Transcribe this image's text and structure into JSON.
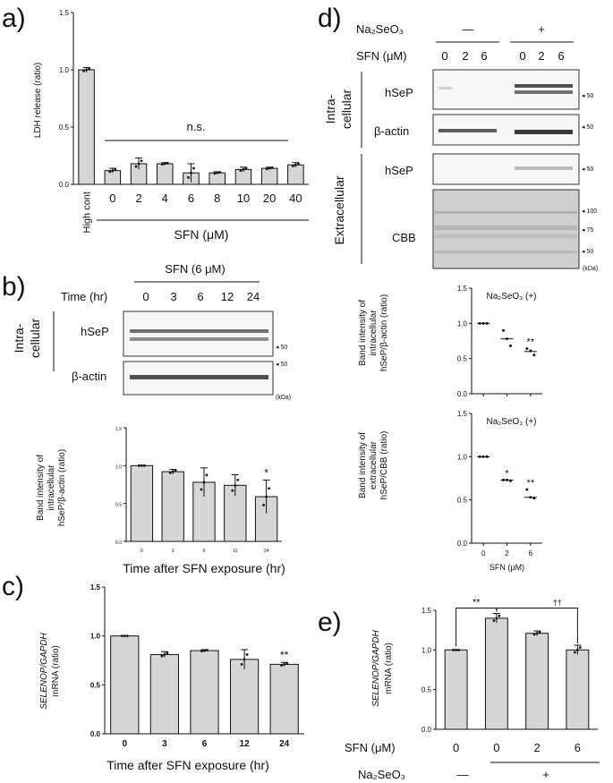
{
  "chart_data": [
    {
      "panel": "a)",
      "type": "bar",
      "ylabel": "LDH release (ratio)",
      "xlabel": "SFN (μM)",
      "categories": [
        "High cont",
        "0",
        "2",
        "4",
        "6",
        "8",
        "10",
        "20",
        "40"
      ],
      "values": [
        1.0,
        0.12,
        0.18,
        0.18,
        0.1,
        0.1,
        0.13,
        0.14,
        0.17
      ],
      "errors": [
        0.02,
        0.02,
        0.05,
        0.01,
        0.08,
        0.01,
        0.02,
        0.01,
        0.02
      ],
      "ylim": [
        0,
        1.5
      ],
      "yticks": [
        "0.0",
        "0.5",
        "1.0",
        "1.5"
      ],
      "annotation": "n.s."
    },
    {
      "panel": "b)",
      "type": "bar",
      "ylabel": "Band intensity of intracellular hSeP/β-actin (ratio)",
      "xlabel": "Time after SFN exposure (hr)",
      "categories": [
        "0",
        "3",
        "6",
        "12",
        "24"
      ],
      "values": [
        1.0,
        0.92,
        0.78,
        0.74,
        0.59
      ],
      "errors": [
        0.0,
        0.03,
        0.19,
        0.14,
        0.22
      ],
      "significance": [
        "",
        "",
        "",
        "",
        "*"
      ],
      "ylim": [
        0,
        1.5
      ],
      "yticks": [
        "0.0",
        "0.5",
        "1.0",
        "1.5"
      ]
    },
    {
      "panel": "c)",
      "type": "bar",
      "ylabel_italic": "SELENOP/GAPDH",
      "ylabel": "mRNA (ratio)",
      "xlabel": "Time after SFN exposure (hr)",
      "categories": [
        "0",
        "3",
        "6",
        "12",
        "24"
      ],
      "values": [
        1.0,
        0.81,
        0.85,
        0.76,
        0.71
      ],
      "errors": [
        0.0,
        0.03,
        0.01,
        0.1,
        0.02
      ],
      "significance": [
        "",
        "",
        "",
        "",
        "**"
      ],
      "ylim": [
        0,
        1.5
      ],
      "yticks": [
        "0.0",
        "0.5",
        "1.0",
        "1.5"
      ]
    },
    {
      "panel": "d) upper",
      "type": "scatter",
      "ylabel": "Band intensity of intracellular hSeP/β-actin (ratio)",
      "legend": "Na₂SeO₃ (+)",
      "categories": [
        "0",
        "2",
        "6"
      ],
      "points": [
        [
          1.0,
          1.0,
          1.0
        ],
        [
          0.9,
          0.78,
          0.68
        ],
        [
          0.64,
          0.61,
          0.55
        ]
      ],
      "means": [
        1.0,
        0.78,
        0.6
      ],
      "significance": [
        "",
        "",
        "**"
      ],
      "ylim": [
        0,
        1.5
      ],
      "yticks": [
        "0.0",
        "0.5",
        "1.0",
        "1.5"
      ]
    },
    {
      "panel": "d) lower",
      "type": "scatter",
      "ylabel": "Band intensity of extracellular hSeP/CBB (ratio)",
      "legend": "Na₂SeO₃ (+)",
      "xlabel": "SFN (μM)",
      "categories": [
        "0",
        "2",
        "6"
      ],
      "points": [
        [
          1.0,
          1.0,
          1.0
        ],
        [
          0.73,
          0.73,
          0.72
        ],
        [
          0.62,
          0.53,
          0.52
        ]
      ],
      "means": [
        1.0,
        0.73,
        0.53
      ],
      "significance": [
        "",
        "*",
        "**"
      ],
      "ylim": [
        0,
        1.5
      ],
      "yticks": [
        "0.0",
        "0.5",
        "1.0",
        "1.5"
      ]
    },
    {
      "panel": "e)",
      "type": "bar",
      "ylabel_italic": "SELENOP/GAPDH",
      "ylabel": "mRNA (ratio)",
      "row_label": "SFN (μM)",
      "categories": [
        "0",
        "0",
        "2",
        "6"
      ],
      "values": [
        1.0,
        1.4,
        1.21,
        1.0
      ],
      "errors": [
        0.0,
        0.06,
        0.03,
        0.06
      ],
      "ylim": [
        0,
        1.5
      ],
      "yticks": [
        "0.0",
        "0.5",
        "1.0",
        "1.5"
      ],
      "bracket_left": "**",
      "bracket_right": "††",
      "treatment_label": "Na₂SeO₃",
      "treatment_minus": "—",
      "treatment_plus": "+"
    }
  ],
  "blots": {
    "b": {
      "header": "SFN (6 μM)",
      "time_label": "Time (hr)",
      "times": [
        "0",
        "3",
        "6",
        "12",
        "24"
      ],
      "group": "Intra-cellular",
      "group_line1": "Intra-",
      "group_line2": "cellular",
      "rows": [
        "hSeP",
        "β-actin"
      ],
      "marker": "◂ 50",
      "kda": "(kDa)"
    },
    "d": {
      "treatment": "Na₂SeO₃",
      "minus": "—",
      "plus": "+",
      "sfn_label": "SFN (μM)",
      "sfn": [
        "0",
        "2",
        "6",
        "0",
        "2",
        "6"
      ],
      "intra_line1": "Intra-",
      "intra_line2": "cellular",
      "extra": "Extracellular",
      "rows": [
        "hSeP",
        "β-actin",
        "hSeP",
        "CBB"
      ],
      "markers": [
        "◂ 50",
        "◂ 50",
        "◂ 50",
        "◂ 100",
        "◂ 75",
        "◂ 50"
      ],
      "kda": "(kDa)"
    }
  },
  "panel_labels": [
    "a)",
    "b)",
    "c)",
    "d)",
    "e)"
  ],
  "ylabel_a": "LDH release (ratio)",
  "ylabel_b1": "Band intensity of",
  "ylabel_b2": "intracellular",
  "ylabel_b3": "hSeP/β-actin (ratio)",
  "ylabel_d1_1": "Band intensity of",
  "ylabel_d1_2": "intracellular",
  "ylabel_d1_3": "hSeP/β-actin (ratio)",
  "ylabel_d2_1": "Band intensity of",
  "ylabel_d2_2": "extracellular",
  "ylabel_d2_3": "hSeP/CBB (ratio)",
  "ylabel_c_italic": "SELENOP/GAPDH",
  "ylabel_c": "mRNA (ratio)",
  "ylabel_e_italic": "SELENOP/GAPDH",
  "ylabel_e": "mRNA (ratio)"
}
